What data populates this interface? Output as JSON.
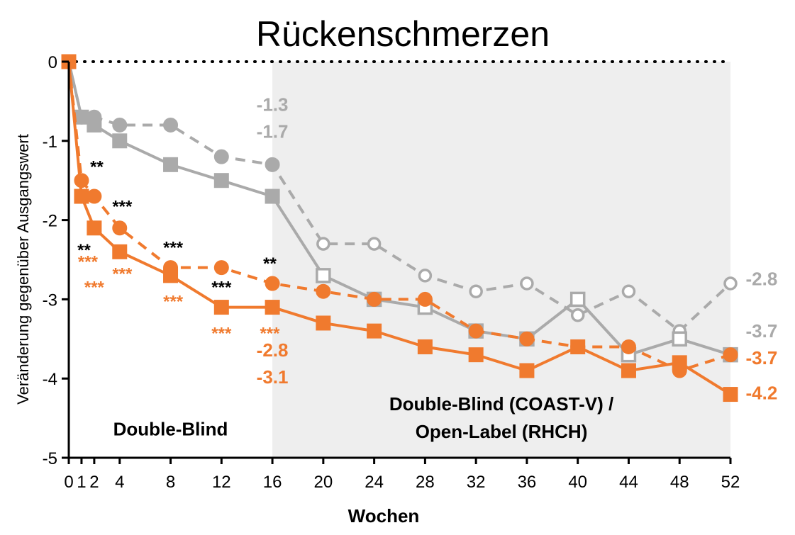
{
  "chart_data": {
    "type": "line",
    "title": "Rückenschmerzen",
    "xlabel": "Wochen",
    "ylabel": "Veränderung gegenüber Ausgangswert",
    "xlim": [
      0,
      52
    ],
    "ylim": [
      -5,
      0
    ],
    "x_ticks": [
      "0",
      "1",
      "2",
      "4",
      "8",
      "12",
      "16",
      "20",
      "24",
      "28",
      "32",
      "36",
      "40",
      "44",
      "48",
      "52"
    ],
    "x_tick_values": [
      0,
      1,
      2,
      4,
      8,
      12,
      16,
      20,
      24,
      28,
      32,
      36,
      40,
      44,
      48,
      52
    ],
    "y_ticks": [
      "0",
      "-1",
      "-2",
      "-3",
      "-4",
      "-5"
    ],
    "y_tick_values": [
      0,
      -1,
      -2,
      -3,
      -4,
      -5
    ],
    "shaded_region": {
      "x_from": 16,
      "x_to": 52,
      "color": "#eeeeee"
    },
    "regions": [
      {
        "text": "Double-Blind",
        "x": 8,
        "y": -4.72
      },
      {
        "text": "Double-Blind (COAST-V) /",
        "x": 34,
        "y": -4.4
      },
      {
        "text": "Open-Label (RHCH)",
        "x": 34,
        "y": -4.75
      }
    ],
    "series": [
      {
        "marker": "circle",
        "dashed": true,
        "color": "#aaaaaa",
        "hollow_after": 16,
        "points": [
          [
            0,
            0
          ],
          [
            1,
            -0.7
          ],
          [
            2,
            -0.7
          ],
          [
            4,
            -0.8
          ],
          [
            8,
            -0.8
          ],
          [
            12,
            -1.2
          ],
          [
            16,
            -1.3
          ],
          [
            20,
            -2.3
          ],
          [
            24,
            -2.3
          ],
          [
            28,
            -2.7
          ],
          [
            32,
            -2.9
          ],
          [
            36,
            -2.8
          ],
          [
            40,
            -3.2
          ],
          [
            44,
            -2.9
          ],
          [
            48,
            -3.4
          ],
          [
            52,
            -2.8
          ]
        ]
      },
      {
        "marker": "square",
        "dashed": false,
        "color": "#aaaaaa",
        "hollow_after": 16,
        "points": [
          [
            0,
            0
          ],
          [
            1,
            -0.7
          ],
          [
            2,
            -0.8
          ],
          [
            4,
            -1.0
          ],
          [
            8,
            -1.3
          ],
          [
            12,
            -1.5
          ],
          [
            16,
            -1.7
          ],
          [
            20,
            -2.7
          ],
          [
            24,
            -3.0
          ],
          [
            28,
            -3.1
          ],
          [
            32,
            -3.4
          ],
          [
            36,
            -3.5
          ],
          [
            40,
            -3.0
          ],
          [
            44,
            -3.7
          ],
          [
            48,
            -3.5
          ],
          [
            52,
            -3.7
          ]
        ]
      },
      {
        "marker": "circle",
        "dashed": true,
        "color": "#f07a2e",
        "points": [
          [
            0,
            0
          ],
          [
            1,
            -1.5
          ],
          [
            2,
            -1.7
          ],
          [
            4,
            -2.1
          ],
          [
            8,
            -2.6
          ],
          [
            12,
            -2.6
          ],
          [
            16,
            -2.8
          ],
          [
            20,
            -2.9
          ],
          [
            24,
            -3.0
          ],
          [
            28,
            -3.0
          ],
          [
            32,
            -3.4
          ],
          [
            36,
            -3.5
          ],
          [
            40,
            -3.6
          ],
          [
            44,
            -3.6
          ],
          [
            48,
            -3.9
          ],
          [
            52,
            -3.7
          ]
        ]
      },
      {
        "marker": "square",
        "dashed": false,
        "color": "#f07a2e",
        "points": [
          [
            0,
            0
          ],
          [
            1,
            -1.7
          ],
          [
            2,
            -2.1
          ],
          [
            4,
            -2.4
          ],
          [
            8,
            -2.7
          ],
          [
            12,
            -3.1
          ],
          [
            16,
            -3.1
          ],
          [
            20,
            -3.3
          ],
          [
            24,
            -3.4
          ],
          [
            28,
            -3.6
          ],
          [
            32,
            -3.7
          ],
          [
            36,
            -3.9
          ],
          [
            40,
            -3.6
          ],
          [
            44,
            -3.9
          ],
          [
            48,
            -3.8
          ],
          [
            52,
            -4.2
          ]
        ]
      }
    ],
    "value_labels": [
      {
        "text": "-1.3",
        "x": 16,
        "y": -0.62,
        "color": "#aaaaaa",
        "anchor": "middle"
      },
      {
        "text": "-1.7",
        "x": 16,
        "y": -0.96,
        "color": "#aaaaaa",
        "anchor": "middle"
      },
      {
        "text": "-2.8",
        "x": 16,
        "y": -3.72,
        "color": "#f07a2e",
        "anchor": "middle"
      },
      {
        "text": "-3.1",
        "x": 16,
        "y": -4.06,
        "color": "#f07a2e",
        "anchor": "middle"
      },
      {
        "text": "-2.8",
        "x": 53.2,
        "y": -2.82,
        "color": "#aaaaaa",
        "anchor": "start"
      },
      {
        "text": "-3.7",
        "x": 53.2,
        "y": -3.48,
        "color": "#aaaaaa",
        "anchor": "start"
      },
      {
        "text": "-3.7",
        "x": 53.2,
        "y": -3.82,
        "color": "#f07a2e",
        "anchor": "start"
      },
      {
        "text": "-4.2",
        "x": 53.2,
        "y": -4.26,
        "color": "#f07a2e",
        "anchor": "start"
      }
    ],
    "significance": [
      {
        "text": "**",
        "x": 2.2,
        "y": -1.4,
        "color": "#000000"
      },
      {
        "text": "***",
        "x": 4.2,
        "y": -1.9,
        "color": "#000000"
      },
      {
        "text": "**",
        "x": 1.2,
        "y": -2.45,
        "color": "#000000"
      },
      {
        "text": "***",
        "x": 1.5,
        "y": -2.6,
        "color": "#f07a2e"
      },
      {
        "text": "***",
        "x": 4.2,
        "y": -2.75,
        "color": "#f07a2e"
      },
      {
        "text": "***",
        "x": 2.0,
        "y": -2.92,
        "color": "#f07a2e"
      },
      {
        "text": "***",
        "x": 8.2,
        "y": -2.42,
        "color": "#000000"
      },
      {
        "text": "***",
        "x": 8.2,
        "y": -3.1,
        "color": "#f07a2e"
      },
      {
        "text": "***",
        "x": 12.0,
        "y": -2.92,
        "color": "#000000"
      },
      {
        "text": "**",
        "x": 15.8,
        "y": -2.62,
        "color": "#000000"
      },
      {
        "text": "***",
        "x": 12.0,
        "y": -3.5,
        "color": "#f07a2e"
      },
      {
        "text": "***",
        "x": 15.8,
        "y": -3.5,
        "color": "#f07a2e"
      }
    ]
  }
}
